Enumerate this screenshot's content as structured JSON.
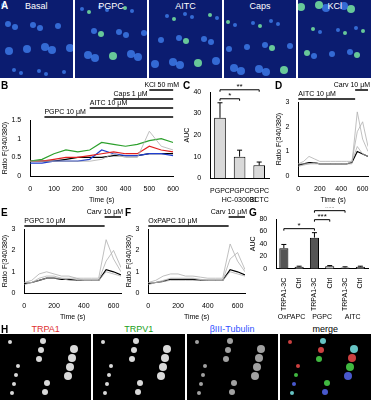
{
  "image_panels": {
    "A": {
      "label": "A",
      "tiles": [
        "Basal",
        "PGPC",
        "AITC",
        "Caps",
        "KCl"
      ]
    },
    "H": {
      "label": "H",
      "tiles": [
        "TRPA1",
        "TRPV1",
        "βIII-Tubulin",
        "merge"
      ]
    }
  },
  "chart_data": [
    {
      "panel": "B",
      "type": "line",
      "x": [
        0,
        50,
        100,
        150,
        200,
        250,
        300,
        350,
        400,
        450,
        500,
        550,
        600
      ],
      "series": [
        {
          "color": "#b0b0b0",
          "values": [
            0.4,
            0.4,
            0.4,
            0.4,
            0.4,
            0.4,
            0.45,
            0.6,
            0.5,
            0.5,
            1.2,
            0.8,
            0.7
          ]
        },
        {
          "color": "#2ca02c",
          "values": [
            0.4,
            0.45,
            0.6,
            0.7,
            0.65,
            0.7,
            0.9,
            0.85,
            0.8,
            0.85,
            0.95,
            1.0,
            0.9
          ]
        },
        {
          "color": "#e02020",
          "values": [
            0.4,
            0.4,
            0.45,
            0.5,
            0.5,
            0.55,
            0.6,
            0.65,
            0.6,
            0.6,
            0.8,
            0.7,
            0.65
          ]
        },
        {
          "color": "#1f3fd0",
          "values": [
            0.35,
            0.35,
            0.4,
            0.4,
            0.4,
            0.45,
            0.7,
            0.6,
            0.55,
            0.55,
            0.6,
            0.6,
            0.55
          ]
        },
        {
          "color": "#000000",
          "values": [
            0.4,
            0.4,
            0.4,
            0.45,
            0.5,
            0.5,
            0.5,
            0.55,
            0.55,
            0.55,
            0.6,
            0.6,
            0.6
          ]
        }
      ],
      "xlim": [
        0,
        600
      ],
      "xticks": [
        0,
        100,
        200,
        300,
        400,
        500,
        600
      ],
      "ylim": [
        0,
        1.5
      ],
      "yticks": [
        0,
        0.5,
        1,
        1.5
      ],
      "x_label": "Time (s)",
      "y_label": "Ratio F(340/380)",
      "grid": false,
      "annotations": [
        {
          "text": "PGPC 10 μM",
          "x": [
            60,
            600
          ]
        },
        {
          "text": "AITC 10 μM",
          "x": [
            250,
            600
          ]
        },
        {
          "text": "Caps 1 μM",
          "x": [
            350,
            600
          ]
        },
        {
          "text": "KCl 50 mM",
          "x": [
            500,
            600
          ]
        }
      ]
    },
    {
      "panel": "C",
      "type": "bar",
      "categories": [
        "PGPC",
        "PGPC HC-030031",
        "PGPC BCTC"
      ],
      "values": [
        28,
        10,
        6
      ],
      "errors": [
        7,
        3,
        1.5
      ],
      "color": "#d9d9d9",
      "ylim": [
        0,
        40
      ],
      "yticks": [
        0,
        10,
        20,
        30,
        40
      ],
      "y_label": "AUC",
      "grid": false,
      "significance": [
        {
          "from": 0,
          "to": 1,
          "text": "*"
        },
        {
          "from": 0,
          "to": 2,
          "text": "**"
        }
      ]
    },
    {
      "panel": "D",
      "type": "line",
      "x": [
        0,
        50,
        100,
        150,
        200,
        250,
        300,
        350,
        400,
        450,
        500,
        550,
        600,
        650
      ],
      "series": [
        {
          "color": "#b0b0b0",
          "values": [
            0.5,
            0.5,
            0.5,
            0.55,
            0.5,
            0.5,
            0.5,
            0.5,
            0.5,
            0.5,
            0.5,
            2.6,
            1.5,
            1.0
          ]
        },
        {
          "color": "#b0b0b0",
          "values": [
            0.4,
            0.45,
            0.5,
            0.5,
            0.5,
            0.5,
            0.5,
            0.5,
            0.5,
            0.5,
            0.6,
            1.8,
            2.2,
            1.2
          ]
        },
        {
          "color": "#b0b0b0",
          "values": [
            0.5,
            0.6,
            0.8,
            0.7,
            0.6,
            0.6,
            0.6,
            0.6,
            0.6,
            0.6,
            0.6,
            1.2,
            0.9,
            0.8
          ]
        },
        {
          "color": "#000000",
          "values": [
            0.45,
            0.5,
            0.55,
            0.55,
            0.5,
            0.5,
            0.5,
            0.5,
            0.5,
            0.5,
            0.55,
            1.0,
            0.9,
            0.8
          ]
        }
      ],
      "xlim": [
        0,
        650
      ],
      "xticks": [
        0,
        200,
        400,
        600
      ],
      "ylim": [
        0,
        3
      ],
      "yticks": [
        0,
        1,
        2,
        3
      ],
      "x_label": "Time (s)",
      "y_label": "Ratio F(340/380)",
      "grid": false,
      "annotations": [
        {
          "text": "AITC 10 μM",
          "x": [
            0,
            530
          ]
        },
        {
          "text": "Carv 10 μM",
          "x": [
            530,
            650
          ]
        }
      ]
    },
    {
      "panel": "E",
      "type": "line",
      "x": [
        0,
        50,
        100,
        150,
        200,
        250,
        300,
        350,
        400,
        450,
        500,
        550,
        600,
        650
      ],
      "series": [
        {
          "color": "#b0b0b0",
          "values": [
            0.5,
            0.6,
            0.9,
            1.0,
            0.9,
            0.8,
            0.8,
            0.7,
            0.7,
            0.7,
            0.7,
            2.5,
            1.6,
            1.0
          ]
        },
        {
          "color": "#b0b0b0",
          "values": [
            0.4,
            0.5,
            0.7,
            0.8,
            0.8,
            0.7,
            0.7,
            0.7,
            0.6,
            0.6,
            0.6,
            1.5,
            2.0,
            1.2
          ]
        },
        {
          "color": "#b0b0b0",
          "values": [
            0.5,
            0.5,
            0.6,
            0.7,
            0.7,
            0.7,
            0.6,
            0.6,
            0.6,
            0.6,
            0.6,
            1.0,
            0.9,
            0.8
          ]
        },
        {
          "color": "#000000",
          "values": [
            0.45,
            0.5,
            0.6,
            0.7,
            0.7,
            0.65,
            0.65,
            0.6,
            0.6,
            0.6,
            0.6,
            1.1,
            1.0,
            0.85
          ]
        }
      ],
      "xlim": [
        0,
        650
      ],
      "xticks": [
        0,
        200,
        400,
        600
      ],
      "ylim": [
        0,
        3
      ],
      "yticks": [
        0,
        1,
        2,
        3
      ],
      "x_label": "Time (s)",
      "y_label": "Ratio F(340/380)",
      "grid": false,
      "annotations": [
        {
          "text": "PGPC 10 μM",
          "x": [
            0,
            540
          ]
        },
        {
          "text": "Carv 10 μM",
          "x": [
            540,
            650
          ]
        }
      ]
    },
    {
      "panel": "F",
      "type": "line",
      "x": [
        0,
        50,
        100,
        150,
        200,
        250,
        300,
        350,
        400,
        450,
        500,
        550,
        600,
        650
      ],
      "series": [
        {
          "color": "#b0b0b0",
          "values": [
            0.5,
            0.6,
            0.8,
            0.9,
            0.9,
            0.8,
            0.8,
            0.75,
            0.7,
            0.7,
            0.7,
            2.3,
            1.5,
            1.0
          ]
        },
        {
          "color": "#b0b0b0",
          "values": [
            0.4,
            0.5,
            0.6,
            0.7,
            0.7,
            0.7,
            0.7,
            0.65,
            0.6,
            0.6,
            0.6,
            1.6,
            1.9,
            1.1
          ]
        },
        {
          "color": "#b0b0b0",
          "values": [
            0.5,
            0.5,
            0.55,
            0.6,
            0.6,
            0.6,
            0.6,
            0.6,
            0.6,
            0.6,
            0.6,
            1.0,
            0.9,
            0.8
          ]
        },
        {
          "color": "#000000",
          "values": [
            0.45,
            0.5,
            0.55,
            0.65,
            0.65,
            0.65,
            0.65,
            0.6,
            0.6,
            0.6,
            0.6,
            1.1,
            1.0,
            0.85
          ]
        }
      ],
      "xlim": [
        0,
        650
      ],
      "xticks": [
        0,
        200,
        400,
        600
      ],
      "ylim": [
        0,
        3
      ],
      "yticks": [
        0,
        1,
        2,
        3
      ],
      "x_label": "Time (s)",
      "y_label": "Ratio F(340/380)",
      "grid": false,
      "annotations": [
        {
          "text": "OxPAPC 10 μM",
          "x": [
            0,
            540
          ]
        },
        {
          "text": "Carv 10 μM",
          "x": [
            540,
            650
          ]
        }
      ]
    },
    {
      "panel": "G",
      "type": "bar",
      "categories": [
        "TRPA1-3C",
        "Ctrl",
        "TRPA1-3C",
        "Ctrl",
        "TRPA1-3C",
        "Ctrl"
      ],
      "groups": [
        "OxPAPC",
        "PGPC",
        "AITC"
      ],
      "values": [
        33,
        3,
        50,
        4,
        2,
        3
      ],
      "errors": [
        6,
        1,
        8,
        1,
        1,
        1
      ],
      "colors": [
        "#555555",
        "#bbbbbb",
        "#555555",
        "#bbbbbb",
        "#555555",
        "#bbbbbb"
      ],
      "ylim": [
        0,
        80
      ],
      "yticks": [
        0,
        20,
        40,
        60,
        80
      ],
      "y_label": "AUC",
      "grid": false,
      "significance": [
        {
          "from": 0,
          "to": 2,
          "text": "*"
        },
        {
          "from": 2,
          "to": 3,
          "text": "***"
        },
        {
          "from": 2,
          "to": 4,
          "text": "***"
        }
      ]
    }
  ]
}
